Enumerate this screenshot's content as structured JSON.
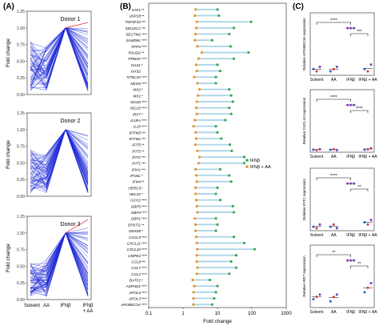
{
  "panels": {
    "A": {
      "label": "(A)",
      "ylabel": "Fold change",
      "donors": [
        "Donor 1",
        "Donor 2",
        "Donor 3"
      ],
      "yticks": [
        "0.00",
        "0.25",
        "0.50",
        "0.75",
        "1.00",
        "1.25"
      ],
      "xticks": [
        "Solvent",
        "AA",
        "IFNβ",
        "IFNβ\n+ AA"
      ],
      "colors": {
        "lines": "#1f2bd6",
        "highlight": "#e8323a"
      }
    },
    "B": {
      "label": "(B)",
      "xlabel": "Fold change",
      "legend": [
        "IFNβ",
        "IFNβ + AA"
      ],
      "colors": {
        "ifn": "#3aa655",
        "ifn_aa": "#e8962a",
        "bar": "#a9d5e8"
      }
    },
    "C": {
      "label": "(C)",
      "colors": {
        "solvent": "#2b5fd9",
        "aa": "#e3c43a",
        "ifn": "#7e3fb0",
        "ifn_aa": "#e8323a",
        "sig": "#111111"
      }
    }
  },
  "chart_data": [
    {
      "type": "line",
      "panel": "A",
      "x": [
        "Solvent",
        "AA",
        "IFNβ",
        "IFNβ + AA"
      ],
      "ylabel": "Fold change",
      "ylim": [
        0,
        1.25
      ],
      "series": [
        {
          "name": "Donor 1",
          "typical_range": {
            "Solvent": [
              0.05,
              0.8
            ],
            "AA": [
              0.05,
              0.75
            ],
            "IFNβ": [
              1.0,
              1.0
            ],
            "IFNβ + AA": [
              0.05,
              1.0
            ]
          },
          "highlight_gene_end": 1.08
        },
        {
          "name": "Donor 2",
          "typical_range": {
            "Solvent": [
              0.05,
              0.7
            ],
            "AA": [
              0.05,
              0.65
            ],
            "IFNβ": [
              1.0,
              1.0
            ],
            "IFNβ + AA": [
              0.05,
              0.95
            ]
          }
        },
        {
          "name": "Donor 3",
          "typical_range": {
            "Solvent": [
              0.05,
              0.55
            ],
            "AA": [
              0.05,
              0.6
            ],
            "IFNβ": [
              1.0,
              1.0
            ],
            "IFNβ + AA": [
              0.05,
              1.1
            ]
          },
          "highlight_gene_end": 1.2
        }
      ]
    },
    {
      "type": "scatter",
      "panel": "B",
      "xlabel": "Fold change",
      "xscale": "log",
      "xlim": [
        0.1,
        1000
      ],
      "xticks": [
        "0.1",
        "1",
        "10",
        "100",
        "1000"
      ],
      "genes": [
        {
          "name": "XAF1",
          "sig": "**",
          "ifn": 10,
          "ifn_aa": 2.3
        },
        {
          "name": "USP18",
          "sig": "**",
          "ifn": 11,
          "ifn_aa": 2.2
        },
        {
          "name": "TNFSF10",
          "sig": "***",
          "ifn": 95,
          "ifn_aa": 2.5
        },
        {
          "name": "SIGLEC1",
          "sig": "***",
          "ifn": 30,
          "ifn_aa": 2.4
        },
        {
          "name": "SECTM1",
          "sig": "****",
          "ifn": 22,
          "ifn_aa": 2.3
        },
        {
          "name": "SAMD9L",
          "sig": "****",
          "ifn": 7,
          "ifn_aa": 2.2
        },
        {
          "name": "RTP4",
          "sig": "****",
          "ifn": 24,
          "ifn_aa": 2.6
        },
        {
          "name": "RSAD2",
          "sig": "**",
          "ifn": 80,
          "ifn_aa": 3.5
        },
        {
          "name": "PPM1K",
          "sig": "****",
          "ifn": 30,
          "ifn_aa": 2.8
        },
        {
          "name": "OAS1",
          "sig": "*",
          "ifn": 10,
          "ifn_aa": 2.4
        },
        {
          "name": "OAS2",
          "sig": "",
          "ifn": 12,
          "ifn_aa": 2.5
        },
        {
          "name": "NT5C3A",
          "sig": "****",
          "ifn": 9,
          "ifn_aa": 2.1
        },
        {
          "name": "NEXN",
          "sig": "****",
          "ifn": 9,
          "ifn_aa": 2.6
        },
        {
          "name": "MX2",
          "sig": "*",
          "ifn": 22,
          "ifn_aa": 3.0
        },
        {
          "name": "MX1",
          "sig": "*",
          "ifn": 25,
          "ifn_aa": 2.7
        },
        {
          "name": "ISG20",
          "sig": "****",
          "ifn": 28,
          "ifn_aa": 2.5
        },
        {
          "name": "ISG15",
          "sig": "****",
          "ifn": 22,
          "ifn_aa": 2.4
        },
        {
          "name": "IRF7",
          "sig": "*",
          "ifn": 25,
          "ifn_aa": 2.5
        },
        {
          "name": "IL1RA",
          "sig": "****",
          "ifn": 17,
          "ifn_aa": 2.2
        },
        {
          "name": "IL15",
          "sig": "****",
          "ifn": 9,
          "ifn_aa": 2.0
        },
        {
          "name": "IFITM3",
          "sig": "***",
          "ifn": 10,
          "ifn_aa": 2.3
        },
        {
          "name": "IFITM1",
          "sig": "***",
          "ifn": 13,
          "ifn_aa": 2.4
        },
        {
          "name": "IFIT5",
          "sig": "**",
          "ifn": 23,
          "ifn_aa": 2.3
        },
        {
          "name": "IFIT3",
          "sig": "**",
          "ifn": 26,
          "ifn_aa": 2.6
        },
        {
          "name": "IFIT2",
          "sig": "***",
          "ifn": 60,
          "ifn_aa": 3.0
        },
        {
          "name": "IFIT1",
          "sig": "***",
          "ifn": 60,
          "ifn_aa": 2.8
        },
        {
          "name": "IFIH1",
          "sig": "***",
          "ifn": 12,
          "ifn_aa": 2.3
        },
        {
          "name": "IFI44L",
          "sig": "*",
          "ifn": 22,
          "ifn_aa": 2.4
        },
        {
          "name": "IFI44",
          "sig": "**",
          "ifn": 25,
          "ifn_aa": 2.5
        },
        {
          "name": "HERC5",
          "sig": "*",
          "ifn": 10,
          "ifn_aa": 2.3
        },
        {
          "name": "HELZ2",
          "sig": "*",
          "ifn": 9,
          "ifn_aa": 2.3
        },
        {
          "name": "GCH1",
          "sig": "****",
          "ifn": 12,
          "ifn_aa": 2.4
        },
        {
          "name": "GBP5",
          "sig": "****",
          "ifn": 28,
          "ifn_aa": 2.5
        },
        {
          "name": "GBP4",
          "sig": "****",
          "ifn": 30,
          "ifn_aa": 2.6
        },
        {
          "name": "GBP1",
          "sig": "****",
          "ifn": 9,
          "ifn_aa": 2.2
        },
        {
          "name": "EPSTI1",
          "sig": "**",
          "ifn": 10,
          "ifn_aa": 2.3
        },
        {
          "name": "DDX58",
          "sig": "*",
          "ifn": 9,
          "ifn_aa": 2.3
        },
        {
          "name": "CXCL9",
          "sig": "****",
          "ifn": 30,
          "ifn_aa": 2.4
        },
        {
          "name": "CXCL11",
          "sig": "****",
          "ifn": 60,
          "ifn_aa": 2.5
        },
        {
          "name": "CXCL10",
          "sig": "****",
          "ifn": 120,
          "ifn_aa": 2.6
        },
        {
          "name": "CMPK2",
          "sig": "****",
          "ifn": 35,
          "ifn_aa": 2.5
        },
        {
          "name": "CCL8",
          "sig": "***",
          "ifn": 25,
          "ifn_aa": 2.5
        },
        {
          "name": "CCL7",
          "sig": "****",
          "ifn": 35,
          "ifn_aa": 2.6
        },
        {
          "name": "CCL2",
          "sig": "****",
          "ifn": 22,
          "ifn_aa": 2.5
        },
        {
          "name": "BATF2",
          "sig": "*",
          "ifn": 6,
          "ifn_aa": 1.9
        },
        {
          "name": "ASPHD1",
          "sig": "****",
          "ifn": 10,
          "ifn_aa": 2.1
        },
        {
          "name": "APOL6",
          "sig": "****",
          "ifn": 9,
          "ifn_aa": 2.0
        },
        {
          "name": "APOL3",
          "sig": "****",
          "ifn": 8,
          "ifn_aa": 2.0
        },
        {
          "name": "APOBEC3A",
          "sig": "****",
          "ifn": 7,
          "ifn_aa": 2.0
        }
      ]
    },
    {
      "type": "scatter",
      "panel": "C",
      "categories": [
        "Solvent",
        "AA",
        "IFNβ",
        "IFNβ + AA"
      ],
      "subplots": [
        {
          "ylabel": "Relative APOBEC3A expression",
          "values": {
            "Solvent": [
              0.1,
              0.05,
              0.15
            ],
            "AA": [
              0.05,
              0.1,
              0.15
            ],
            "IFNβ": [
              1.0,
              1.0,
              1.0
            ],
            "IFNβ + AA": [
              0.1,
              0.05,
              0.2
            ]
          },
          "brackets": [
            {
              "from": "Solvent",
              "to": "IFNβ",
              "label": "****"
            },
            {
              "from": "IFNβ",
              "to": "IFNβ + AA",
              "label": "***"
            }
          ]
        },
        {
          "ylabel": "Relative CXCL10 expression",
          "values": {
            "Solvent": [
              0.02,
              0.01,
              0.03
            ],
            "AA": [
              0.02,
              0.03,
              0.01
            ],
            "IFNβ": [
              1.0,
              1.0,
              1.0
            ],
            "IFNβ + AA": [
              0.02,
              0.03,
              0.05
            ]
          },
          "brackets": [
            {
              "from": "Solvent",
              "to": "IFNβ",
              "label": "****"
            },
            {
              "from": "IFNβ",
              "to": "IFNβ + AA",
              "label": "****"
            }
          ]
        },
        {
          "ylabel": "Relative IFIT2 expression",
          "values": {
            "Solvent": [
              0.05,
              0.02,
              0.1
            ],
            "AA": [
              0.05,
              0.1,
              0.02
            ],
            "IFNβ": [
              1.0,
              1.0,
              1.0
            ],
            "IFNβ + AA": [
              0.15,
              0.1,
              0.2
            ]
          },
          "brackets": [
            {
              "from": "Solvent",
              "to": "IFNβ",
              "label": "****"
            },
            {
              "from": "IFNβ",
              "to": "IFNβ + AA",
              "label": "**"
            }
          ]
        },
        {
          "ylabel": "Relative IRF7 expression",
          "values": {
            "Solvent": [
              0.15,
              0.2,
              0.25
            ],
            "AA": [
              0.1,
              0.2,
              0.25
            ],
            "IFNβ": [
              1.0,
              1.0,
              1.0
            ],
            "IFNβ + AA": [
              0.3,
              0.4,
              0.5
            ]
          },
          "brackets": [
            {
              "from": "Solvent",
              "to": "IFNβ",
              "label": "**"
            },
            {
              "from": "IFNβ",
              "to": "IFNβ + AA",
              "label": "**"
            }
          ]
        }
      ]
    }
  ]
}
